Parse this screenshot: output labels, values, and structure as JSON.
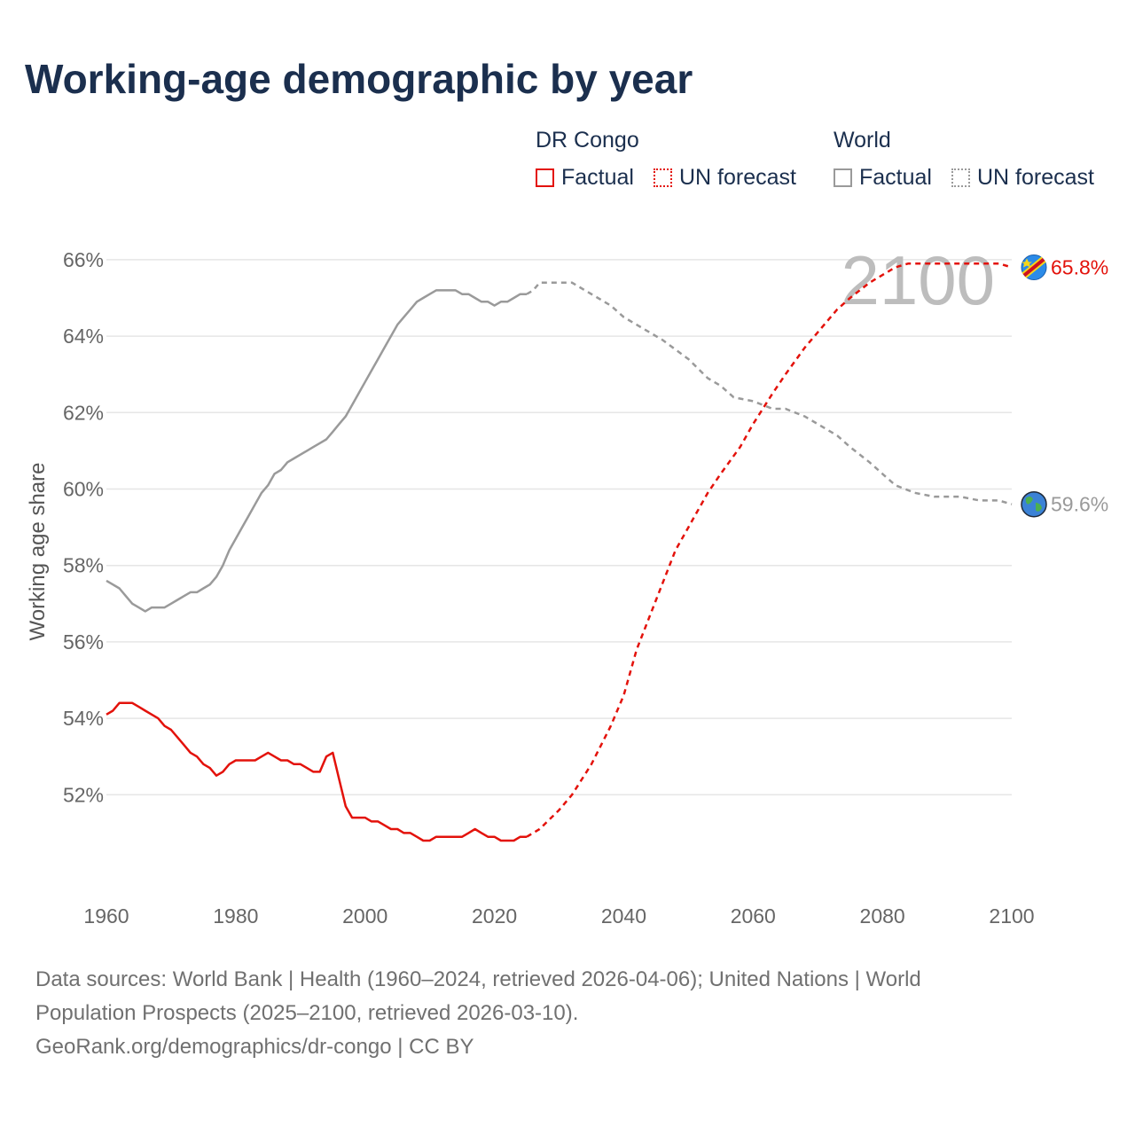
{
  "title": "Working-age demographic by year",
  "legend": {
    "drc": {
      "title": "DR Congo",
      "factual": "Factual",
      "forecast": "UN forecast"
    },
    "world": {
      "title": "World",
      "factual": "Factual",
      "forecast": "UN forecast"
    }
  },
  "overlay_year": "2100",
  "source": {
    "line1": "Data sources: World Bank | Health (1960–2024, retrieved 2026-04-06); United Nations | World",
    "line2": "Population Prospects (2025–2100, retrieved 2026-03-10).",
    "line3": "GeoRank.org/demographics/dr-congo | CC BY"
  },
  "colors": {
    "drc": "#e3120b",
    "world": "#9a9a9a",
    "title": "#1b2f4e",
    "grid": "#e6e6e6"
  },
  "chart_data": {
    "type": "line",
    "ylabel": "Working age share",
    "xlim": [
      1960,
      2100
    ],
    "ylim": [
      49.5,
      66.3
    ],
    "x_ticks": [
      1960,
      1980,
      2000,
      2020,
      2040,
      2060,
      2080,
      2100
    ],
    "y_ticks": [
      52,
      54,
      56,
      58,
      60,
      62,
      64,
      66
    ],
    "y_tick_labels": [
      "52%",
      "54%",
      "56%",
      "58%",
      "60%",
      "62%",
      "64%",
      "66%"
    ],
    "series": [
      {
        "name": "DR Congo",
        "color": "#e3120b",
        "end_label": "65.8%",
        "end_icon": "dr-congo-flag-icon",
        "factual": [
          [
            1960,
            54.1
          ],
          [
            1961,
            54.2
          ],
          [
            1962,
            54.4
          ],
          [
            1963,
            54.4
          ],
          [
            1964,
            54.4
          ],
          [
            1965,
            54.3
          ],
          [
            1966,
            54.2
          ],
          [
            1967,
            54.1
          ],
          [
            1968,
            54.0
          ],
          [
            1969,
            53.8
          ],
          [
            1970,
            53.7
          ],
          [
            1971,
            53.5
          ],
          [
            1972,
            53.3
          ],
          [
            1973,
            53.1
          ],
          [
            1974,
            53.0
          ],
          [
            1975,
            52.8
          ],
          [
            1976,
            52.7
          ],
          [
            1977,
            52.5
          ],
          [
            1978,
            52.6
          ],
          [
            1979,
            52.8
          ],
          [
            1980,
            52.9
          ],
          [
            1981,
            52.9
          ],
          [
            1982,
            52.9
          ],
          [
            1983,
            52.9
          ],
          [
            1984,
            53.0
          ],
          [
            1985,
            53.1
          ],
          [
            1986,
            53.0
          ],
          [
            1987,
            52.9
          ],
          [
            1988,
            52.9
          ],
          [
            1989,
            52.8
          ],
          [
            1990,
            52.8
          ],
          [
            1991,
            52.7
          ],
          [
            1992,
            52.6
          ],
          [
            1993,
            52.6
          ],
          [
            1994,
            53.0
          ],
          [
            1995,
            53.1
          ],
          [
            1996,
            52.4
          ],
          [
            1997,
            51.7
          ],
          [
            1998,
            51.4
          ],
          [
            1999,
            51.4
          ],
          [
            2000,
            51.4
          ],
          [
            2001,
            51.3
          ],
          [
            2002,
            51.3
          ],
          [
            2003,
            51.2
          ],
          [
            2004,
            51.1
          ],
          [
            2005,
            51.1
          ],
          [
            2006,
            51.0
          ],
          [
            2007,
            51.0
          ],
          [
            2008,
            50.9
          ],
          [
            2009,
            50.8
          ],
          [
            2010,
            50.8
          ],
          [
            2011,
            50.9
          ],
          [
            2012,
            50.9
          ],
          [
            2013,
            50.9
          ],
          [
            2014,
            50.9
          ],
          [
            2015,
            50.9
          ],
          [
            2016,
            51.0
          ],
          [
            2017,
            51.1
          ],
          [
            2018,
            51.0
          ],
          [
            2019,
            50.9
          ],
          [
            2020,
            50.9
          ],
          [
            2021,
            50.8
          ],
          [
            2022,
            50.8
          ],
          [
            2023,
            50.8
          ],
          [
            2024,
            50.9
          ],
          [
            2025,
            50.9
          ]
        ],
        "forecast": [
          [
            2025,
            50.9
          ],
          [
            2027,
            51.1
          ],
          [
            2030,
            51.6
          ],
          [
            2032,
            52.0
          ],
          [
            2035,
            52.8
          ],
          [
            2038,
            53.8
          ],
          [
            2040,
            54.6
          ],
          [
            2042,
            55.8
          ],
          [
            2045,
            57.1
          ],
          [
            2048,
            58.4
          ],
          [
            2050,
            59.0
          ],
          [
            2053,
            59.9
          ],
          [
            2055,
            60.4
          ],
          [
            2058,
            61.1
          ],
          [
            2060,
            61.7
          ],
          [
            2063,
            62.5
          ],
          [
            2065,
            63.0
          ],
          [
            2068,
            63.7
          ],
          [
            2070,
            64.1
          ],
          [
            2073,
            64.7
          ],
          [
            2075,
            65.0
          ],
          [
            2078,
            65.4
          ],
          [
            2080,
            65.6
          ],
          [
            2082,
            65.8
          ],
          [
            2084,
            65.9
          ],
          [
            2090,
            65.9
          ],
          [
            2095,
            65.9
          ],
          [
            2098,
            65.9
          ],
          [
            2100,
            65.8
          ]
        ]
      },
      {
        "name": "World",
        "color": "#9a9a9a",
        "end_label": "59.6%",
        "end_icon": "globe-icon",
        "factual": [
          [
            1960,
            57.6
          ],
          [
            1961,
            57.5
          ],
          [
            1962,
            57.4
          ],
          [
            1963,
            57.2
          ],
          [
            1964,
            57.0
          ],
          [
            1965,
            56.9
          ],
          [
            1966,
            56.8
          ],
          [
            1967,
            56.9
          ],
          [
            1968,
            56.9
          ],
          [
            1969,
            56.9
          ],
          [
            1970,
            57.0
          ],
          [
            1971,
            57.1
          ],
          [
            1972,
            57.2
          ],
          [
            1973,
            57.3
          ],
          [
            1974,
            57.3
          ],
          [
            1975,
            57.4
          ],
          [
            1976,
            57.5
          ],
          [
            1977,
            57.7
          ],
          [
            1978,
            58.0
          ],
          [
            1979,
            58.4
          ],
          [
            1980,
            58.7
          ],
          [
            1981,
            59.0
          ],
          [
            1982,
            59.3
          ],
          [
            1983,
            59.6
          ],
          [
            1984,
            59.9
          ],
          [
            1985,
            60.1
          ],
          [
            1986,
            60.4
          ],
          [
            1987,
            60.5
          ],
          [
            1988,
            60.7
          ],
          [
            1989,
            60.8
          ],
          [
            1990,
            60.9
          ],
          [
            1991,
            61.0
          ],
          [
            1992,
            61.1
          ],
          [
            1993,
            61.2
          ],
          [
            1994,
            61.3
          ],
          [
            1995,
            61.5
          ],
          [
            1996,
            61.7
          ],
          [
            1997,
            61.9
          ],
          [
            1998,
            62.2
          ],
          [
            1999,
            62.5
          ],
          [
            2000,
            62.8
          ],
          [
            2001,
            63.1
          ],
          [
            2002,
            63.4
          ],
          [
            2003,
            63.7
          ],
          [
            2004,
            64.0
          ],
          [
            2005,
            64.3
          ],
          [
            2006,
            64.5
          ],
          [
            2007,
            64.7
          ],
          [
            2008,
            64.9
          ],
          [
            2009,
            65.0
          ],
          [
            2010,
            65.1
          ],
          [
            2011,
            65.2
          ],
          [
            2012,
            65.2
          ],
          [
            2013,
            65.2
          ],
          [
            2014,
            65.2
          ],
          [
            2015,
            65.1
          ],
          [
            2016,
            65.1
          ],
          [
            2017,
            65.0
          ],
          [
            2018,
            64.9
          ],
          [
            2019,
            64.9
          ],
          [
            2020,
            64.8
          ],
          [
            2021,
            64.9
          ],
          [
            2022,
            64.9
          ],
          [
            2023,
            65.0
          ],
          [
            2024,
            65.1
          ],
          [
            2025,
            65.1
          ]
        ],
        "forecast": [
          [
            2025,
            65.1
          ],
          [
            2026,
            65.2
          ],
          [
            2027,
            65.4
          ],
          [
            2030,
            65.4
          ],
          [
            2032,
            65.4
          ],
          [
            2034,
            65.2
          ],
          [
            2036,
            65.0
          ],
          [
            2038,
            64.8
          ],
          [
            2040,
            64.5
          ],
          [
            2043,
            64.2
          ],
          [
            2046,
            63.9
          ],
          [
            2050,
            63.4
          ],
          [
            2053,
            62.9
          ],
          [
            2055,
            62.7
          ],
          [
            2057,
            62.4
          ],
          [
            2060,
            62.3
          ],
          [
            2063,
            62.1
          ],
          [
            2065,
            62.1
          ],
          [
            2068,
            61.9
          ],
          [
            2070,
            61.7
          ],
          [
            2073,
            61.4
          ],
          [
            2075,
            61.1
          ],
          [
            2078,
            60.7
          ],
          [
            2080,
            60.4
          ],
          [
            2082,
            60.1
          ],
          [
            2085,
            59.9
          ],
          [
            2088,
            59.8
          ],
          [
            2092,
            59.8
          ],
          [
            2095,
            59.7
          ],
          [
            2098,
            59.7
          ],
          [
            2100,
            59.6
          ]
        ]
      }
    ]
  }
}
